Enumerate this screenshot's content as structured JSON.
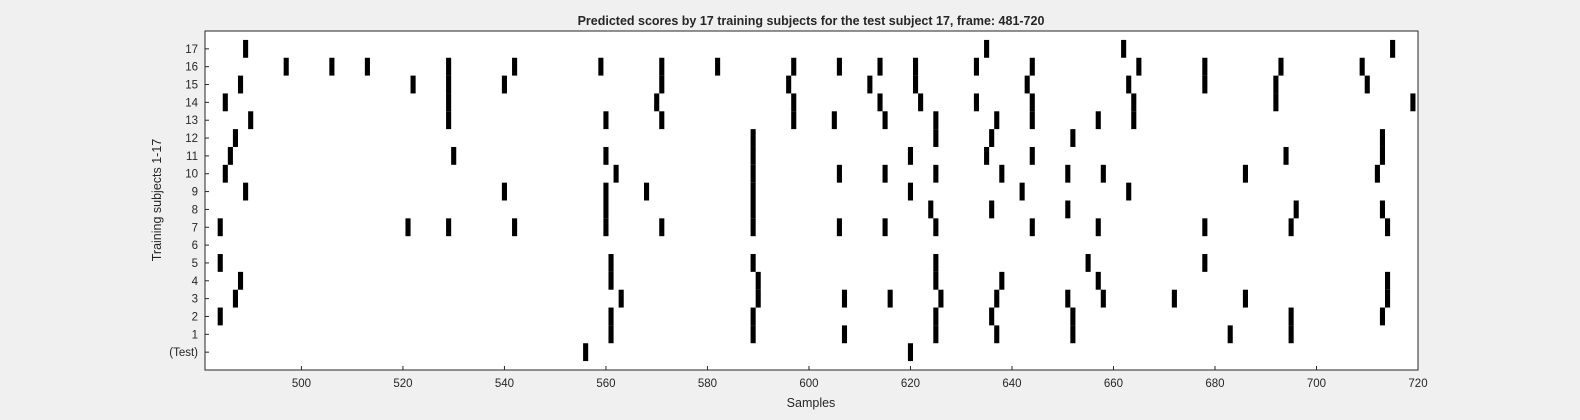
{
  "chart_data": {
    "type": "raster",
    "title": "Predicted scores by 17 training subjects for the test subject 17, frame: 481-720",
    "xlabel": "Samples",
    "ylabel": "Training subjects 1-17",
    "xlim": [
      481,
      720
    ],
    "xticks": [
      500,
      520,
      540,
      560,
      580,
      600,
      620,
      640,
      660,
      680,
      700,
      720
    ],
    "grid": false,
    "row_labels": [
      "(Test)",
      "1",
      "2",
      "3",
      "4",
      "5",
      "6",
      "7",
      "8",
      "9",
      "10",
      "11",
      "12",
      "13",
      "14",
      "15",
      "16",
      "17"
    ],
    "mark_color": "#000000",
    "rows": [
      {
        "label": "(Test)",
        "x": [
          556,
          620
        ]
      },
      {
        "label": "1",
        "x": [
          561,
          589,
          607,
          625,
          637,
          652,
          683,
          695
        ]
      },
      {
        "label": "2",
        "x": [
          484,
          561,
          589,
          625,
          636,
          652,
          695,
          713
        ]
      },
      {
        "label": "3",
        "x": [
          487,
          563,
          590,
          607,
          616,
          626,
          637,
          651,
          658,
          672,
          686,
          714
        ]
      },
      {
        "label": "4",
        "x": [
          488,
          561,
          590,
          625,
          638,
          657,
          714
        ]
      },
      {
        "label": "5",
        "x": [
          484,
          561,
          589,
          625,
          655,
          678
        ]
      },
      {
        "label": "6",
        "x": []
      },
      {
        "label": "7",
        "x": [
          484,
          521,
          529,
          542,
          560,
          571,
          589,
          606,
          615,
          625,
          644,
          657,
          678,
          695,
          714
        ]
      },
      {
        "label": "8",
        "x": [
          560,
          589,
          624,
          636,
          651,
          696,
          713
        ]
      },
      {
        "label": "9",
        "x": [
          489,
          540,
          560,
          568,
          589,
          620,
          642,
          663
        ]
      },
      {
        "label": "10",
        "x": [
          485,
          562,
          589,
          606,
          615,
          625,
          638,
          651,
          658,
          686,
          712
        ]
      },
      {
        "label": "11",
        "x": [
          486,
          530,
          560,
          589,
          620,
          635,
          644,
          694,
          713
        ]
      },
      {
        "label": "12",
        "x": [
          487,
          589,
          625,
          636,
          652,
          713
        ]
      },
      {
        "label": "13",
        "x": [
          490,
          529,
          560,
          571,
          597,
          605,
          615,
          625,
          637,
          644,
          657,
          664
        ]
      },
      {
        "label": "14",
        "x": [
          485,
          529,
          570,
          597,
          614,
          622,
          633,
          644,
          664,
          692,
          719
        ]
      },
      {
        "label": "15",
        "x": [
          488,
          522,
          529,
          540,
          571,
          596,
          612,
          621,
          643,
          663,
          678,
          692,
          710
        ]
      },
      {
        "label": "16",
        "x": [
          497,
          506,
          513,
          529,
          542,
          559,
          571,
          582,
          597,
          606,
          614,
          621,
          633,
          644,
          665,
          678,
          693,
          709
        ]
      },
      {
        "label": "17",
        "x": [
          489,
          635,
          662,
          715
        ]
      }
    ]
  }
}
